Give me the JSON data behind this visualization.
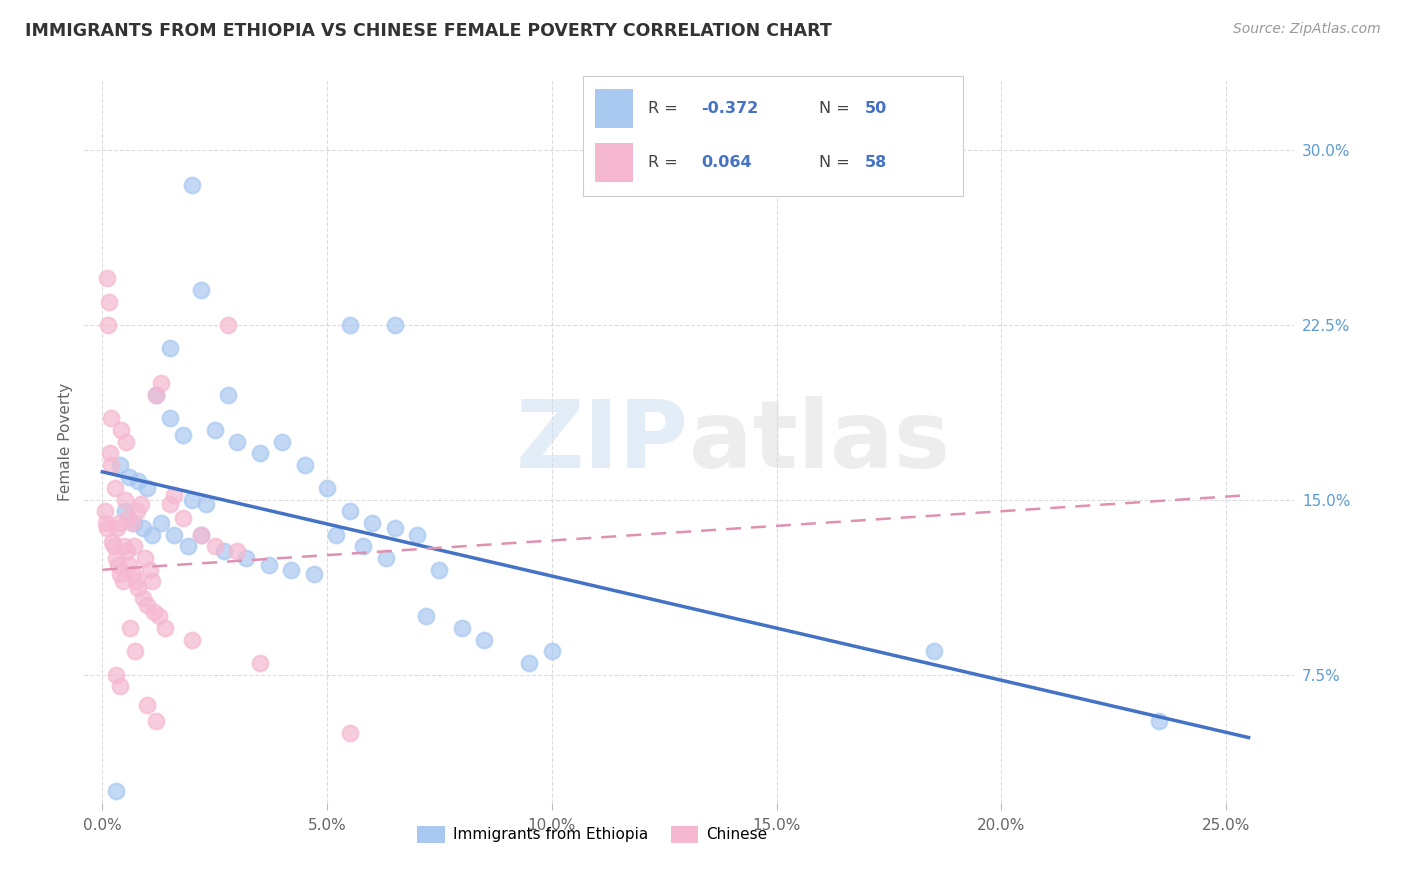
{
  "title": "IMMIGRANTS FROM ETHIOPIA VS CHINESE FEMALE POVERTY CORRELATION CHART",
  "source": "Source: ZipAtlas.com",
  "ylabel": "Female Poverty",
  "x_tick_labels": [
    "0.0%",
    "5.0%",
    "10.0%",
    "15.0%",
    "20.0%",
    "25.0%"
  ],
  "x_tick_vals": [
    0.0,
    5.0,
    10.0,
    15.0,
    20.0,
    25.0
  ],
  "y_tick_labels": [
    "7.5%",
    "15.0%",
    "22.5%",
    "30.0%"
  ],
  "y_tick_vals": [
    7.5,
    15.0,
    22.5,
    30.0
  ],
  "xlim": [
    -0.4,
    26.5
  ],
  "ylim": [
    2.0,
    33.0
  ],
  "legend_label_blue": "Immigrants from Ethiopia",
  "legend_label_pink": "Chinese",
  "R_blue": "-0.372",
  "N_blue": "50",
  "R_pink": "0.064",
  "N_pink": "58",
  "blue_color": "#A8C8F0",
  "pink_color": "#F5B8D0",
  "line_blue": "#4472C4",
  "line_pink": "#E090B0",
  "bg_color": "#FFFFFF",
  "grid_color": "#DDDDDD",
  "watermark_zip": "ZIP",
  "watermark_atlas": "atlas",
  "blue_scatter_x": [
    2.0,
    2.2,
    5.5,
    1.5,
    2.8,
    6.5,
    0.4,
    0.6,
    0.8,
    1.0,
    1.2,
    1.5,
    1.8,
    2.0,
    2.3,
    2.5,
    3.0,
    3.5,
    4.0,
    4.5,
    5.0,
    5.5,
    6.0,
    6.5,
    7.0,
    7.5,
    0.5,
    0.7,
    0.9,
    1.1,
    1.3,
    1.6,
    1.9,
    2.2,
    2.7,
    3.2,
    3.7,
    4.2,
    4.7,
    5.2,
    5.8,
    6.3,
    7.2,
    8.0,
    8.5,
    18.5,
    23.5,
    0.3,
    9.5,
    10.0
  ],
  "blue_scatter_y": [
    28.5,
    24.0,
    22.5,
    21.5,
    19.5,
    22.5,
    16.5,
    16.0,
    15.8,
    15.5,
    19.5,
    18.5,
    17.8,
    15.0,
    14.8,
    18.0,
    17.5,
    17.0,
    17.5,
    16.5,
    15.5,
    14.5,
    14.0,
    13.8,
    13.5,
    12.0,
    14.5,
    14.0,
    13.8,
    13.5,
    14.0,
    13.5,
    13.0,
    13.5,
    12.8,
    12.5,
    12.2,
    12.0,
    11.8,
    13.5,
    13.0,
    12.5,
    10.0,
    9.5,
    9.0,
    8.5,
    5.5,
    2.5,
    8.0,
    8.5
  ],
  "pink_scatter_x": [
    0.05,
    0.08,
    0.1,
    0.12,
    0.15,
    0.18,
    0.2,
    0.22,
    0.25,
    0.28,
    0.3,
    0.32,
    0.35,
    0.38,
    0.4,
    0.42,
    0.45,
    0.48,
    0.5,
    0.52,
    0.55,
    0.58,
    0.6,
    0.62,
    0.65,
    0.68,
    0.7,
    0.72,
    0.75,
    0.78,
    0.8,
    0.85,
    0.9,
    0.95,
    1.0,
    1.05,
    1.1,
    1.15,
    1.2,
    1.25,
    1.3,
    1.4,
    1.5,
    1.6,
    1.8,
    2.0,
    2.2,
    2.5,
    3.0,
    3.5,
    0.1,
    0.2,
    0.3,
    0.4,
    1.0,
    1.2,
    2.8,
    5.5
  ],
  "pink_scatter_y": [
    14.5,
    14.0,
    13.8,
    22.5,
    23.5,
    17.0,
    16.5,
    13.2,
    13.0,
    15.5,
    12.5,
    13.8,
    12.2,
    14.0,
    11.8,
    18.0,
    11.5,
    13.0,
    15.0,
    17.5,
    12.8,
    14.2,
    12.2,
    9.5,
    14.0,
    11.8,
    13.0,
    8.5,
    11.5,
    14.5,
    11.2,
    14.8,
    10.8,
    12.5,
    10.5,
    12.0,
    11.5,
    10.2,
    19.5,
    10.0,
    20.0,
    9.5,
    14.8,
    15.2,
    14.2,
    9.0,
    13.5,
    13.0,
    12.8,
    8.0,
    24.5,
    18.5,
    7.5,
    7.0,
    6.2,
    5.5,
    22.5,
    5.0
  ],
  "blue_line_x0": 0.0,
  "blue_line_x1": 25.5,
  "blue_line_y0": 16.2,
  "blue_line_y1": 4.8,
  "pink_line_x0": 0.0,
  "pink_line_x1": 25.5,
  "pink_line_y0": 12.0,
  "pink_line_y1": 15.2
}
